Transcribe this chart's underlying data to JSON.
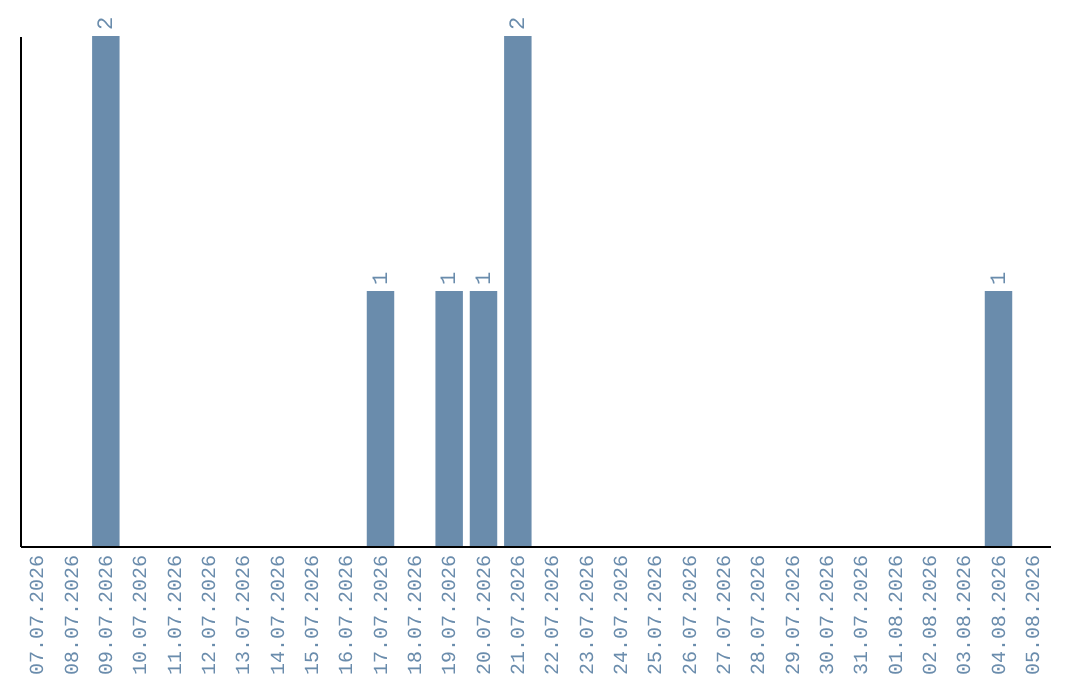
{
  "chart_data": {
    "type": "bar",
    "categories": [
      "07.07.2026",
      "08.07.2026",
      "09.07.2026",
      "10.07.2026",
      "11.07.2026",
      "12.07.2026",
      "13.07.2026",
      "14.07.2026",
      "15.07.2026",
      "16.07.2026",
      "17.07.2026",
      "18.07.2026",
      "19.07.2026",
      "20.07.2026",
      "21.07.2026",
      "22.07.2026",
      "23.07.2026",
      "24.07.2026",
      "25.07.2026",
      "26.07.2026",
      "27.07.2026",
      "28.07.2026",
      "29.07.2026",
      "30.07.2026",
      "31.07.2026",
      "01.08.2026",
      "02.08.2026",
      "03.08.2026",
      "04.08.2026",
      "05.08.2026"
    ],
    "values": [
      0,
      0,
      2,
      0,
      0,
      0,
      0,
      0,
      0,
      0,
      1,
      0,
      1,
      1,
      2,
      0,
      0,
      0,
      0,
      0,
      0,
      0,
      0,
      0,
      0,
      0,
      0,
      0,
      1,
      0
    ],
    "value_labels": [
      null,
      null,
      "2",
      null,
      null,
      null,
      null,
      null,
      null,
      null,
      "1",
      null,
      "1",
      "1",
      "2",
      null,
      null,
      null,
      null,
      null,
      null,
      null,
      null,
      null,
      null,
      null,
      null,
      null,
      "1",
      null
    ],
    "color": "#6a8cac",
    "tick_labels": "x",
    "grid": false
  }
}
